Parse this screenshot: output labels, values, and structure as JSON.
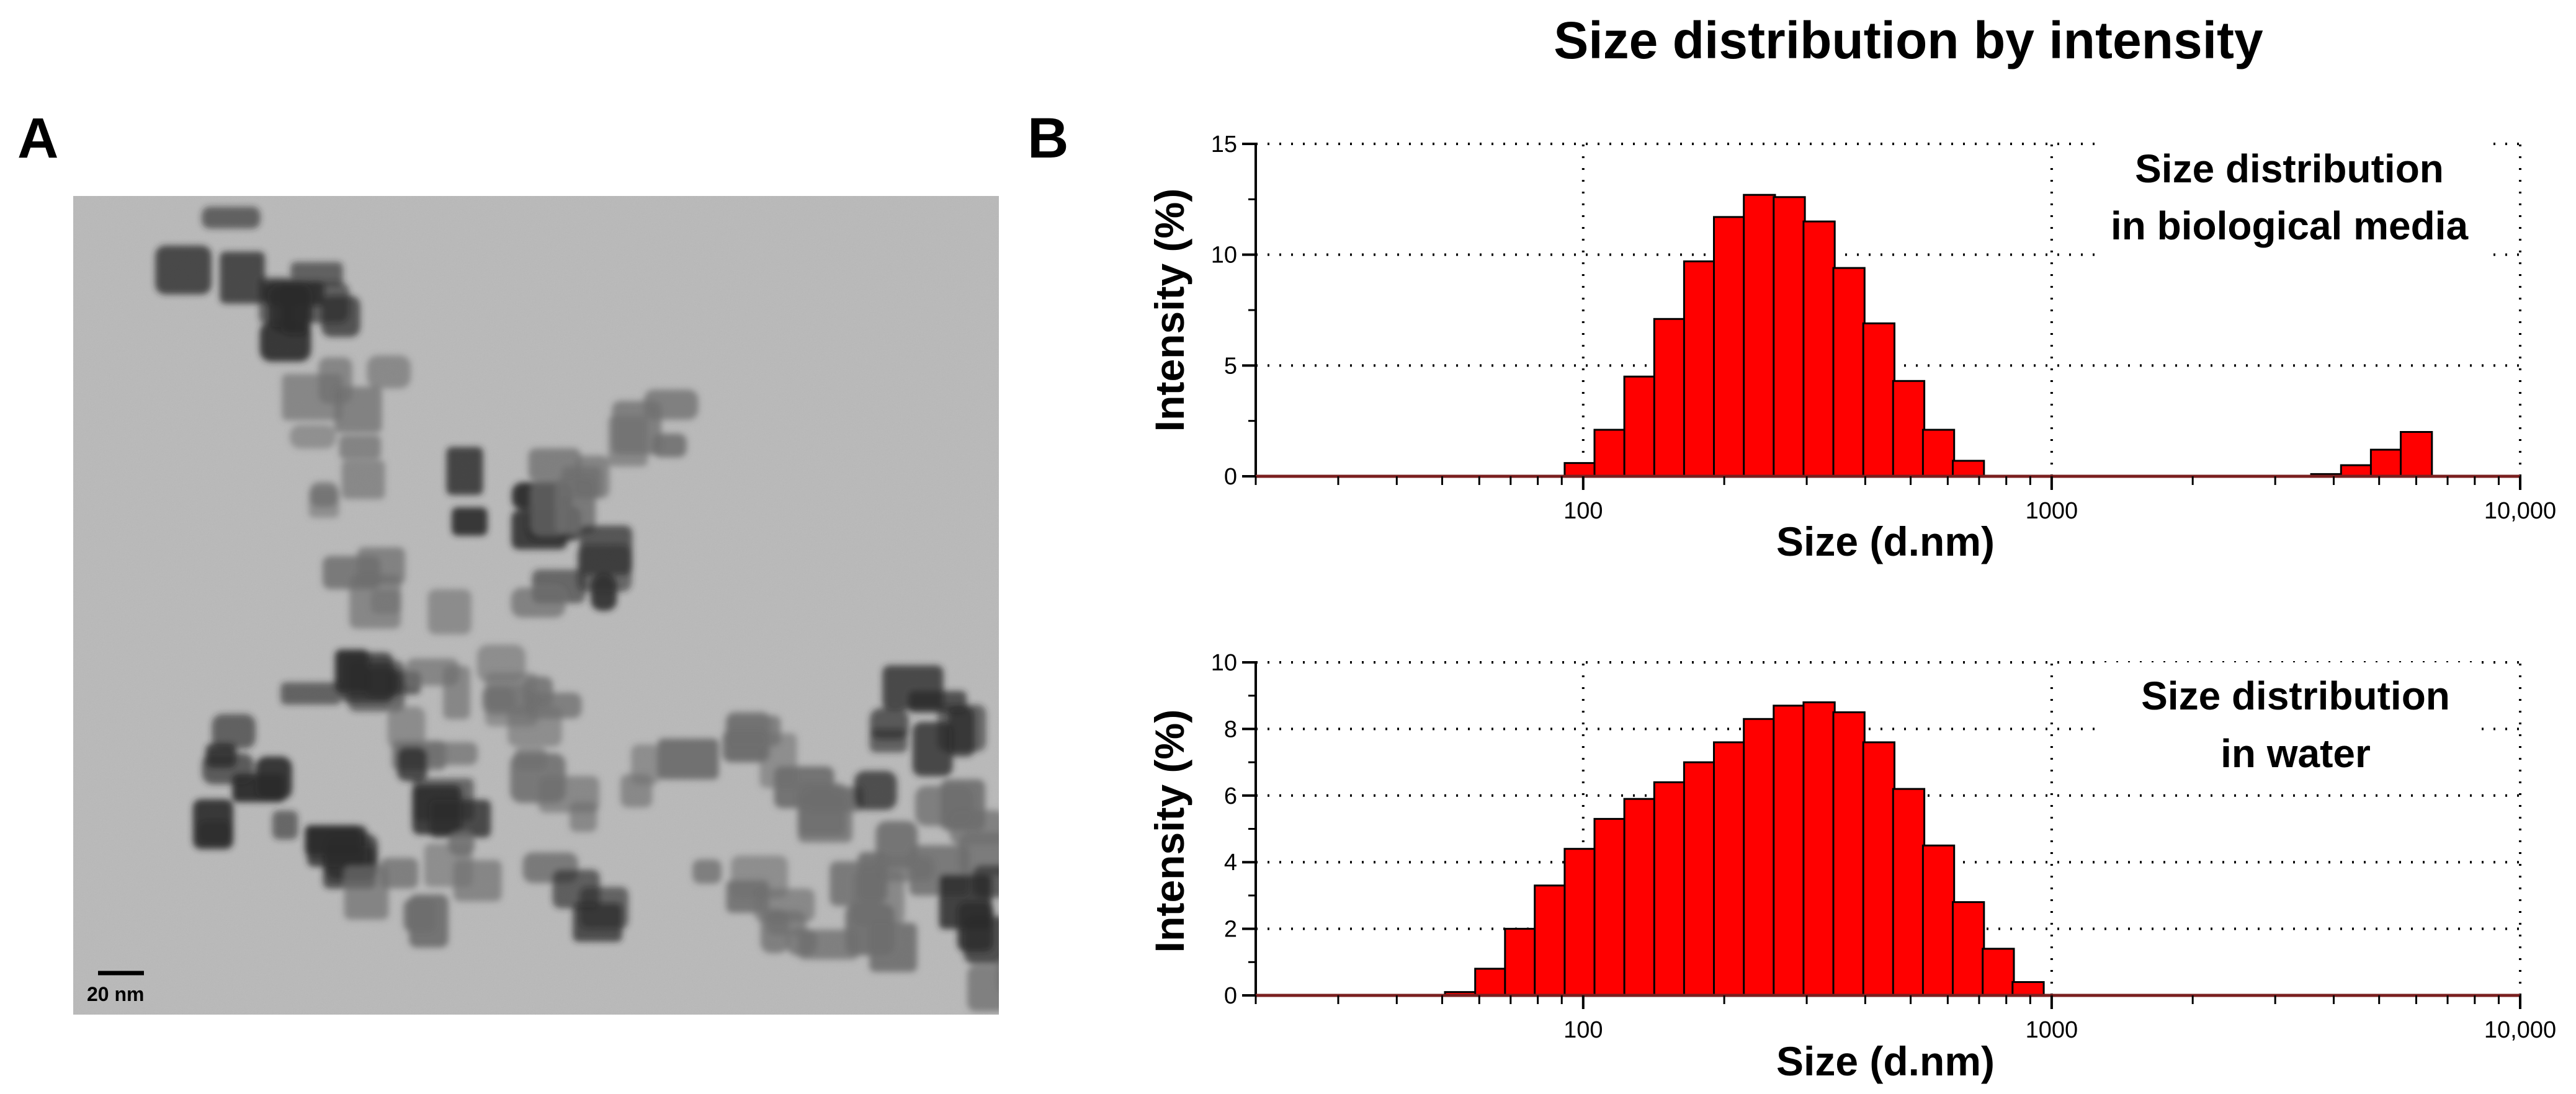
{
  "panel_a": {
    "letter": "A",
    "scale_bar_label": "20 nm"
  },
  "panel_b": {
    "letter": "B",
    "title": "Size distribution by intensity"
  },
  "colors": {
    "bar_fill": "#ff0000",
    "bar_stroke": "#000000",
    "grid": "#000000",
    "baseline": "#7a1f1f",
    "tem_background": "#b9b9b9",
    "particle_dark": "#2a2a2a",
    "particle_mid": "#6e6e6e"
  },
  "chart_data": [
    {
      "type": "bar",
      "title": "Size distribution by intensity",
      "annotation_line1": "Size distribution",
      "annotation_line2": "in biological media",
      "xlabel": "Size (d.nm)",
      "ylabel": "Intensity (%)",
      "xscale": "log",
      "xlim": [
        20,
        10000
      ],
      "ylim": [
        0,
        15
      ],
      "yticks": [
        0,
        5,
        10,
        15
      ],
      "ytick_labels": [
        "0",
        "5",
        "10",
        "15"
      ],
      "xticks": [
        100,
        1000,
        10000
      ],
      "xtick_labels": [
        "100",
        "1000",
        "10,000"
      ],
      "grid": true,
      "bins": [
        {
          "x": 91.3,
          "value": 0.6
        },
        {
          "x": 105.7,
          "value": 2.1
        },
        {
          "x": 122.4,
          "value": 4.5
        },
        {
          "x": 141.8,
          "value": 7.1
        },
        {
          "x": 164.2,
          "value": 9.7
        },
        {
          "x": 190.1,
          "value": 11.7
        },
        {
          "x": 220.2,
          "value": 12.7
        },
        {
          "x": 255.0,
          "value": 12.6
        },
        {
          "x": 295.3,
          "value": 11.5
        },
        {
          "x": 342.0,
          "value": 9.4
        },
        {
          "x": 396.1,
          "value": 6.9
        },
        {
          "x": 458.7,
          "value": 4.3
        },
        {
          "x": 531.2,
          "value": 2.1
        },
        {
          "x": 615.1,
          "value": 0.7
        },
        {
          "x": 3580.0,
          "value": 0.1
        },
        {
          "x": 4146.0,
          "value": 0.5
        },
        {
          "x": 4801.0,
          "value": 1.2
        },
        {
          "x": 5560.0,
          "value": 2.0
        }
      ]
    },
    {
      "type": "bar",
      "annotation_line1": "Size distribution",
      "annotation_line2": "in water",
      "xlabel": "Size (d.nm)",
      "ylabel": "Intensity (%)",
      "xscale": "log",
      "xlim": [
        20,
        10000
      ],
      "ylim": [
        0,
        10
      ],
      "yticks": [
        0,
        2,
        4,
        6,
        8,
        10
      ],
      "ytick_labels": [
        "0",
        "2",
        "4",
        "6",
        "8",
        "10"
      ],
      "xticks": [
        100,
        1000,
        10000
      ],
      "xtick_labels": [
        "100",
        "1000",
        "10,000"
      ],
      "grid": true,
      "bins": [
        {
          "x": 50.7,
          "value": 0.1
        },
        {
          "x": 58.8,
          "value": 0.8
        },
        {
          "x": 68.1,
          "value": 2.0
        },
        {
          "x": 78.8,
          "value": 3.3
        },
        {
          "x": 91.3,
          "value": 4.4
        },
        {
          "x": 105.7,
          "value": 5.3
        },
        {
          "x": 122.4,
          "value": 5.9
        },
        {
          "x": 141.8,
          "value": 6.4
        },
        {
          "x": 164.2,
          "value": 7.0
        },
        {
          "x": 190.1,
          "value": 7.6
        },
        {
          "x": 220.2,
          "value": 8.3
        },
        {
          "x": 255.0,
          "value": 8.7
        },
        {
          "x": 295.3,
          "value": 8.8
        },
        {
          "x": 342.0,
          "value": 8.5
        },
        {
          "x": 396.1,
          "value": 7.6
        },
        {
          "x": 458.7,
          "value": 6.2
        },
        {
          "x": 531.2,
          "value": 4.5
        },
        {
          "x": 615.1,
          "value": 2.8
        },
        {
          "x": 712.4,
          "value": 1.4
        },
        {
          "x": 825.0,
          "value": 0.4
        }
      ]
    }
  ]
}
